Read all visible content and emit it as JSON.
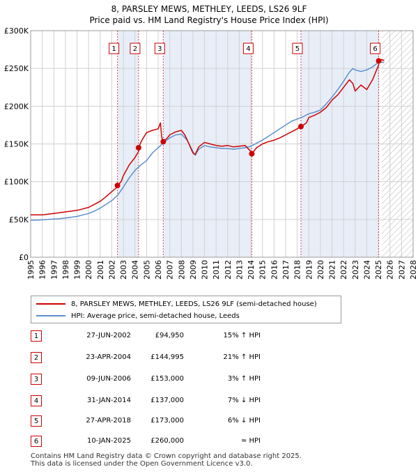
{
  "chart_data": {
    "type": "line",
    "title": "8, PARSLEY MEWS, METHLEY, LEEDS, LS26 9LF",
    "subtitle": "Price paid vs. HM Land Registry's House Price Index (HPI)",
    "xlim": [
      1995,
      2028
    ],
    "ylim": [
      0,
      300000
    ],
    "x_ticks": [
      "1995",
      "1996",
      "1997",
      "1998",
      "1999",
      "2000",
      "2001",
      "2002",
      "2003",
      "2004",
      "2005",
      "2006",
      "2007",
      "2008",
      "2009",
      "2010",
      "2011",
      "2012",
      "2013",
      "2014",
      "2015",
      "2016",
      "2017",
      "2018",
      "2019",
      "2020",
      "2021",
      "2022",
      "2023",
      "2024",
      "2025",
      "2026",
      "2027",
      "2028"
    ],
    "y_ticks": [
      {
        "value": 0,
        "label": "£0"
      },
      {
        "value": 50000,
        "label": "£50K"
      },
      {
        "value": 100000,
        "label": "£100K"
      },
      {
        "value": 150000,
        "label": "£150K"
      },
      {
        "value": 200000,
        "label": "£200K"
      },
      {
        "value": 250000,
        "label": "£250K"
      },
      {
        "value": 300000,
        "label": "£300K"
      }
    ],
    "future_from": 2025.3,
    "series": [
      {
        "name": "8, PARSLEY MEWS, METHLEY, LEEDS, LS26 9LF (semi-detached house)",
        "color": "#cc0000",
        "x": [
          1995.0,
          1995.5,
          1996.0,
          1996.5,
          1997.0,
          1997.5,
          1998.0,
          1998.5,
          1999.0,
          1999.5,
          2000.0,
          2000.5,
          2001.0,
          2001.5,
          2002.0,
          2002.49,
          2002.49,
          2002.8,
          2003.0,
          2003.5,
          2004.0,
          2004.31,
          2004.31,
          2004.6,
          2005.0,
          2005.5,
          2006.0,
          2006.2,
          2006.3,
          2006.44,
          2006.44,
          2006.8,
          2007.0,
          2007.5,
          2008.0,
          2008.3,
          2008.6,
          2009.0,
          2009.2,
          2009.5,
          2010.0,
          2010.5,
          2011.0,
          2011.5,
          2012.0,
          2012.5,
          2013.0,
          2013.5,
          2014.0,
          2014.08,
          2014.08,
          2014.5,
          2015.0,
          2015.5,
          2016.0,
          2016.5,
          2017.0,
          2017.5,
          2018.0,
          2018.32,
          2018.32,
          2018.8,
          2019.0,
          2019.5,
          2020.0,
          2020.5,
          2021.0,
          2021.5,
          2022.0,
          2022.5,
          2022.8,
          2023.0,
          2023.5,
          2024.0,
          2024.5,
          2025.03,
          2025.03,
          2025.3,
          2025.5
        ],
        "values": [
          56000,
          56000,
          56000,
          57000,
          58000,
          59000,
          60000,
          61000,
          62000,
          64000,
          66000,
          70000,
          74000,
          80000,
          87000,
          93000,
          94950,
          100000,
          108000,
          122000,
          132000,
          140000,
          144995,
          155000,
          165000,
          168000,
          170000,
          178000,
          160000,
          150000,
          153000,
          158000,
          162000,
          166000,
          168000,
          162000,
          152000,
          138000,
          136000,
          146000,
          152000,
          150000,
          148000,
          147000,
          148000,
          146000,
          147000,
          148000,
          140000,
          137000,
          137000,
          145000,
          150000,
          153000,
          155000,
          158000,
          162000,
          166000,
          170000,
          173000,
          173000,
          178000,
          185000,
          188000,
          192000,
          198000,
          208000,
          215000,
          225000,
          235000,
          230000,
          220000,
          228000,
          222000,
          235000,
          255000,
          260000,
          262000,
          260000
        ]
      },
      {
        "name": "HPI: Average price, semi-detached house, Leeds",
        "color": "#5b8fcc",
        "x": [
          1995.0,
          1995.5,
          1996.0,
          1996.5,
          1997.0,
          1997.5,
          1998.0,
          1998.5,
          1999.0,
          1999.5,
          2000.0,
          2000.5,
          2001.0,
          2001.5,
          2002.0,
          2002.5,
          2003.0,
          2003.5,
          2004.0,
          2004.5,
          2005.0,
          2005.5,
          2006.0,
          2006.5,
          2007.0,
          2007.5,
          2008.0,
          2008.5,
          2009.0,
          2009.2,
          2009.5,
          2010.0,
          2010.5,
          2011.0,
          2011.5,
          2012.0,
          2012.5,
          2013.0,
          2013.5,
          2014.0,
          2014.5,
          2015.0,
          2015.5,
          2016.0,
          2016.5,
          2017.0,
          2017.5,
          2018.0,
          2018.5,
          2019.0,
          2019.5,
          2020.0,
          2020.5,
          2021.0,
          2021.5,
          2022.0,
          2022.5,
          2022.8,
          2023.0,
          2023.5,
          2024.0,
          2024.5,
          2025.0,
          2025.5
        ],
        "values": [
          49000,
          49000,
          49500,
          50000,
          50500,
          51000,
          52000,
          53000,
          54000,
          56000,
          58000,
          61000,
          65000,
          70000,
          75000,
          82000,
          93000,
          105000,
          115000,
          122000,
          128000,
          138000,
          145000,
          152000,
          158000,
          162000,
          163000,
          155000,
          140000,
          135000,
          143000,
          148000,
          146000,
          145000,
          144000,
          144000,
          143000,
          144000,
          145000,
          147000,
          151000,
          155000,
          160000,
          165000,
          170000,
          175000,
          180000,
          183000,
          186000,
          190000,
          192000,
          195000,
          203000,
          212000,
          222000,
          233000,
          245000,
          250000,
          248000,
          246000,
          248000,
          252000,
          258000,
          258000
        ]
      }
    ],
    "sales": [
      {
        "num": "1",
        "x": 2002.49,
        "value": 94950,
        "date": "27-JUN-2002",
        "price": "£94,950",
        "hpi": "15% ↑ HPI"
      },
      {
        "num": "2",
        "x": 2004.31,
        "value": 144995,
        "date": "23-APR-2004",
        "price": "£144,995",
        "hpi": "21% ↑ HPI"
      },
      {
        "num": "3",
        "x": 2006.44,
        "value": 153000,
        "date": "09-JUN-2006",
        "price": "£153,000",
        "hpi": "3% ↑ HPI"
      },
      {
        "num": "4",
        "x": 2014.08,
        "value": 137000,
        "date": "31-JAN-2014",
        "price": "£137,000",
        "hpi": "7% ↓ HPI"
      },
      {
        "num": "5",
        "x": 2018.32,
        "value": 173000,
        "date": "27-APR-2018",
        "price": "£173,000",
        "hpi": "6% ↓ HPI"
      },
      {
        "num": "6",
        "x": 2025.03,
        "value": 260000,
        "date": "10-JAN-2025",
        "price": "£260,000",
        "hpi": "≈ HPI"
      }
    ],
    "legend": {
      "property": "8, PARSLEY MEWS, METHLEY, LEEDS, LS26 9LF (semi-detached house)",
      "hpi": "HPI: Average price, semi-detached house, Leeds"
    },
    "colors": {
      "property": "#cc0000",
      "hpi": "#5b8fcc",
      "shade": "#e8eef8",
      "grid": "#d0d0d0"
    }
  },
  "footer": {
    "line1": "Contains HM Land Registry data © Crown copyright and database right 2025.",
    "line2": "This data is licensed under the Open Government Licence v3.0."
  }
}
